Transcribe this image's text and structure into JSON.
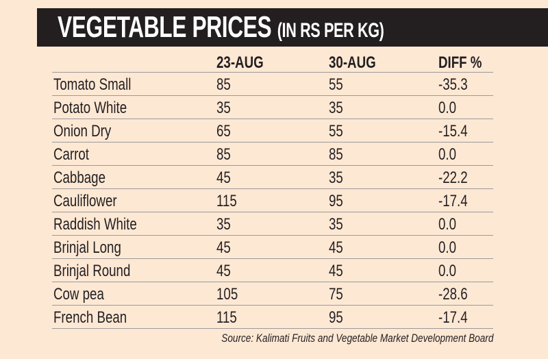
{
  "chart_data": {
    "type": "table",
    "title": "VEGETABLE PRICES",
    "subtitle": "(IN RS PER KG)",
    "columns": [
      "",
      "23-AUG",
      "30-AUG",
      "DIFF %"
    ],
    "rows": [
      [
        "Tomato Small",
        "85",
        "55",
        "-35.3"
      ],
      [
        "Potato White",
        "35",
        "35",
        "0.0"
      ],
      [
        "Onion Dry",
        "65",
        "55",
        "-15.4"
      ],
      [
        "Carrot",
        "85",
        "85",
        "0.0"
      ],
      [
        "Cabbage",
        "45",
        "35",
        "-22.2"
      ],
      [
        "Cauliflower",
        "115",
        "95",
        "-17.4"
      ],
      [
        "Raddish White",
        "35",
        "35",
        "0.0"
      ],
      [
        "Brinjal Long",
        "45",
        "45",
        "0.0"
      ],
      [
        "Brinjal Round",
        "45",
        "45",
        "0.0"
      ],
      [
        "Cow pea",
        "105",
        "75",
        "-28.6"
      ],
      [
        "French Bean",
        "115",
        "95",
        "-17.4"
      ]
    ],
    "source": "Source: Kalimati Fruits and Vegetable Market Development Board"
  },
  "colors": {
    "background": "#fde8d4",
    "title_bar": "#231f20",
    "title_text": "#ffffff",
    "rule": "#9a9a9a"
  }
}
